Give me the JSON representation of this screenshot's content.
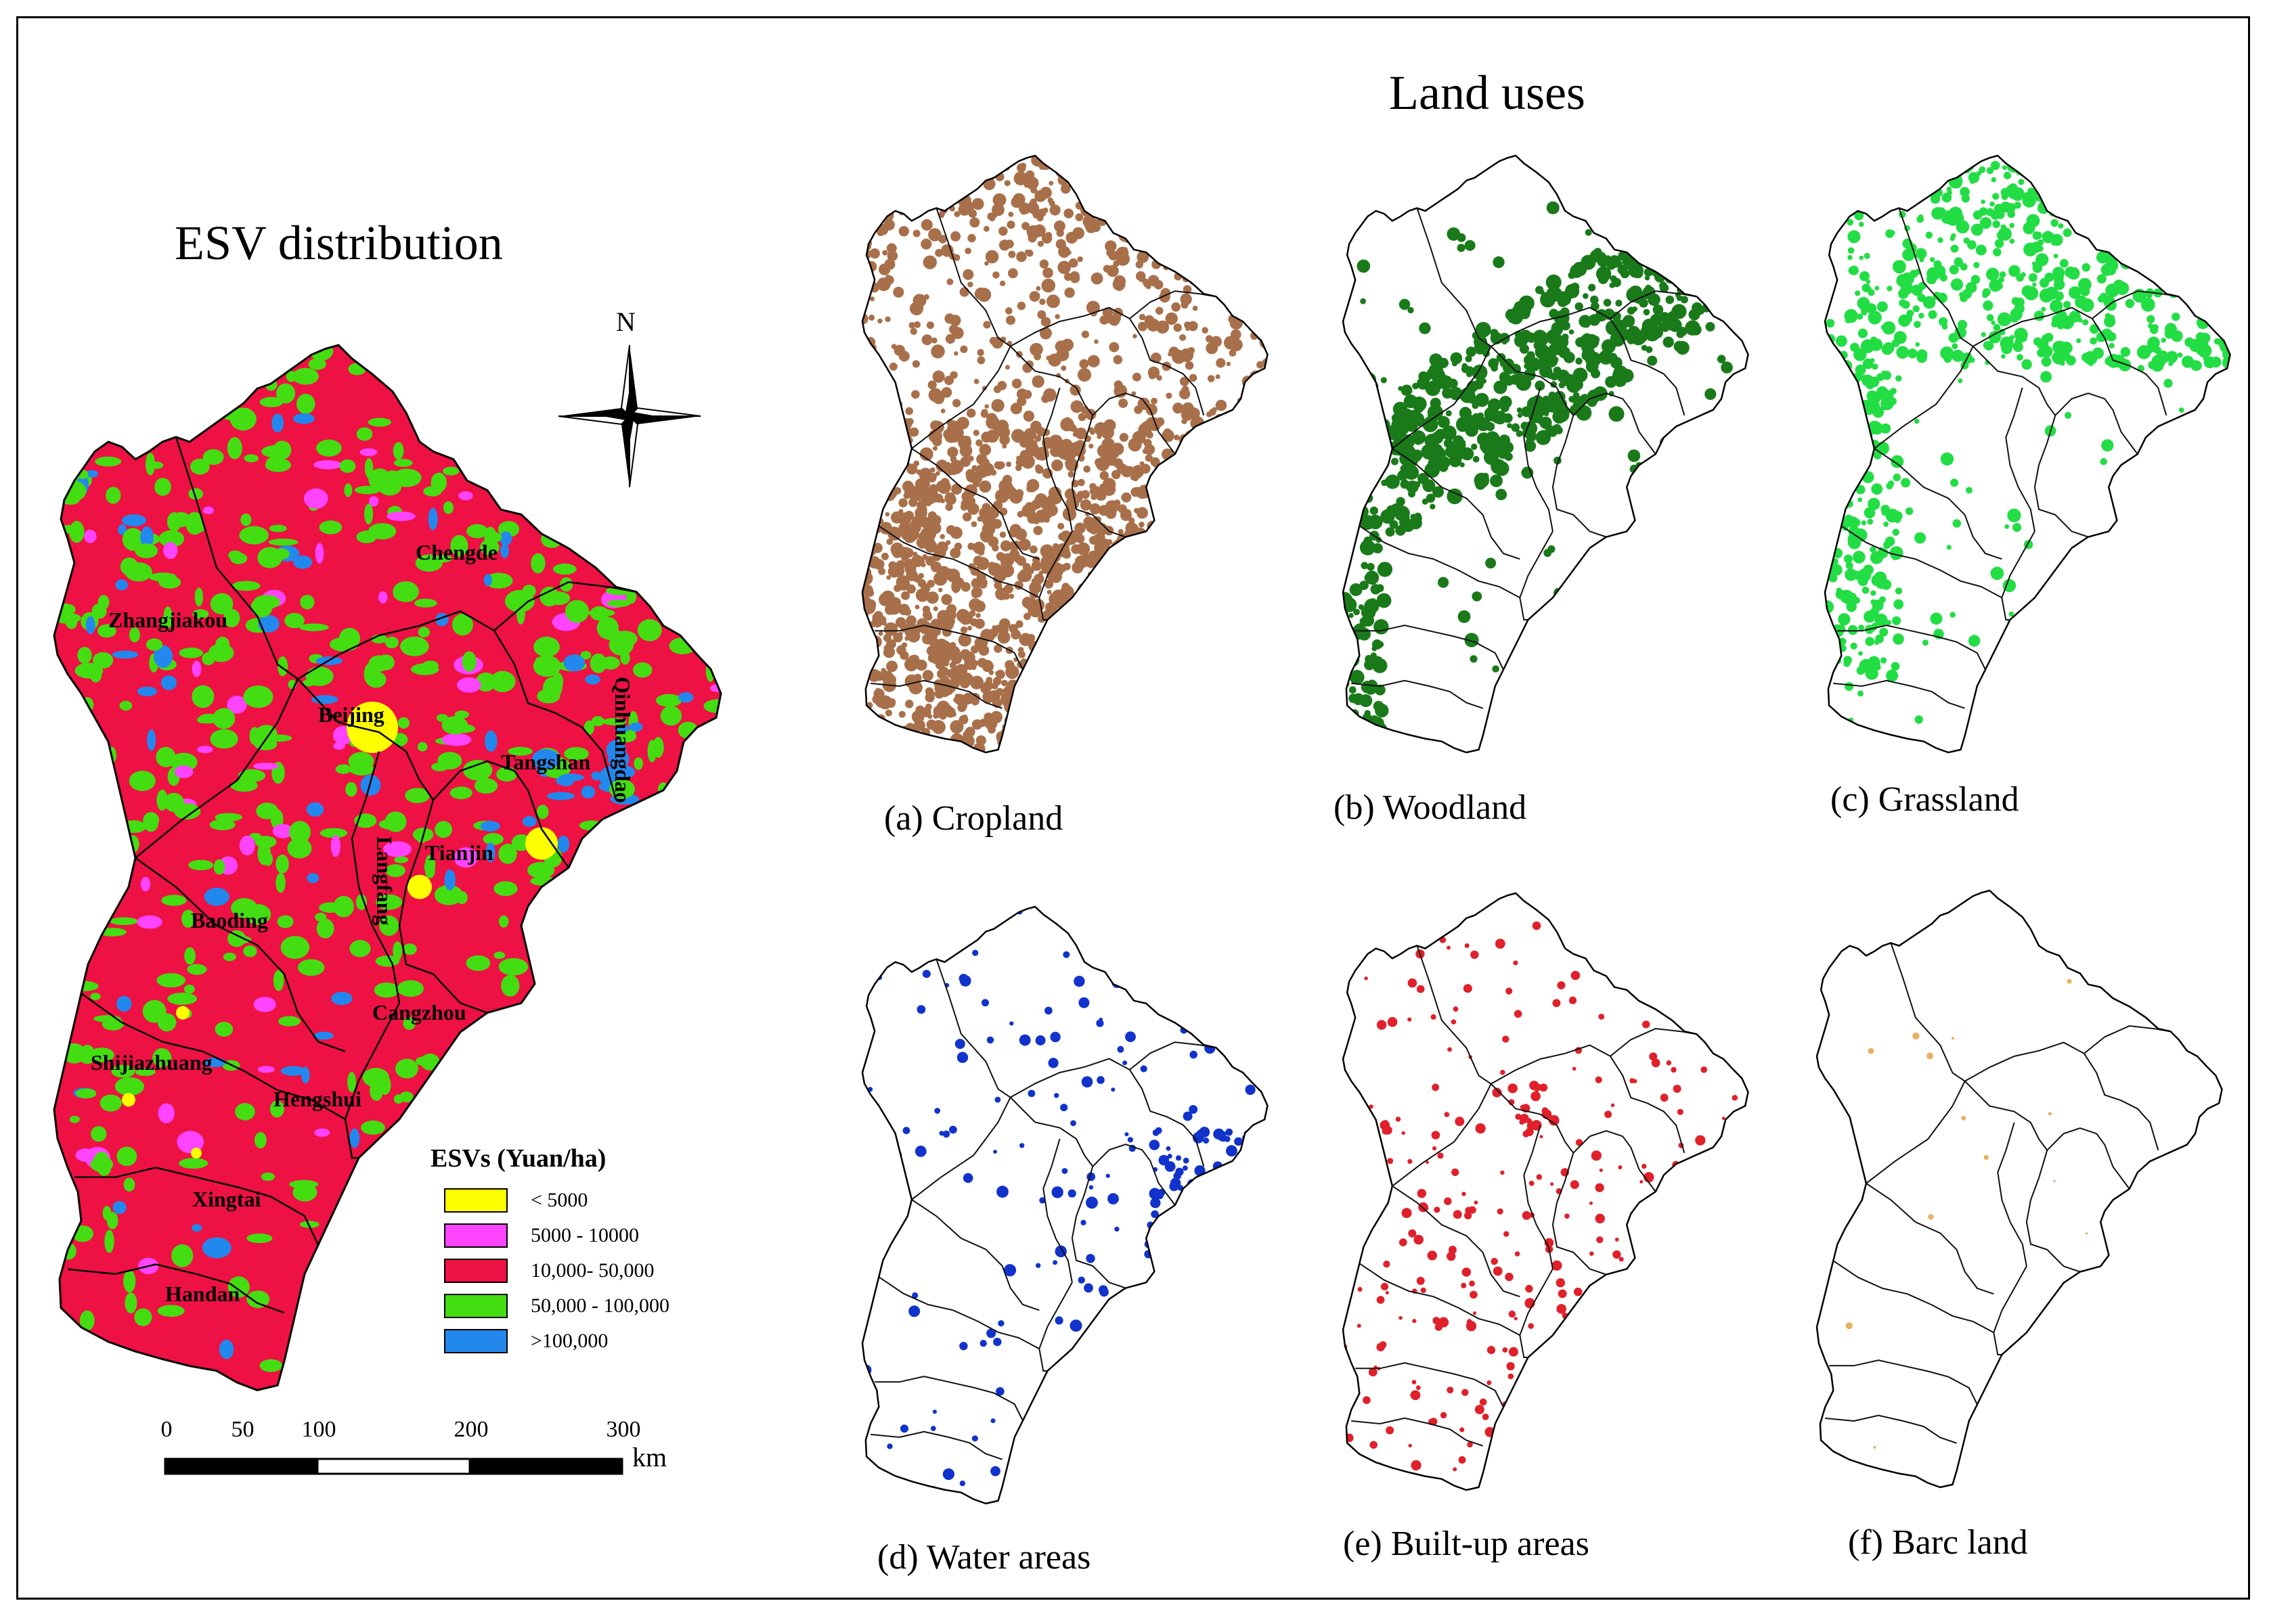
{
  "esv_panel": {
    "title": "ESV distribution",
    "cities": [
      {
        "name": "Zhangjiakou"
      },
      {
        "name": "Chengde"
      },
      {
        "name": "Beijing"
      },
      {
        "name": "Qinhuangdao"
      },
      {
        "name": "Tangshan"
      },
      {
        "name": "Tianjin"
      },
      {
        "name": "Langfang"
      },
      {
        "name": "Baoding"
      },
      {
        "name": "Cangzhou"
      },
      {
        "name": "Shijiazhuang"
      },
      {
        "name": "Hengshui"
      },
      {
        "name": "Xingtai"
      },
      {
        "name": "Handan"
      }
    ],
    "legend": {
      "title": "ESVs (Yuan/ha)",
      "items": [
        {
          "label": "< 5000",
          "color": "#ffff00"
        },
        {
          "label": "5000 - 10000",
          "color": "#ff44ff"
        },
        {
          "label": "10,000- 50,000",
          "color": "#ee1144"
        },
        {
          "label": "50,000 - 100,000",
          "color": "#44dd11"
        },
        {
          "label": ">100,000",
          "color": "#2288ee"
        }
      ]
    },
    "north_label": "N",
    "scale_bar": {
      "ticks": [
        "0",
        "50",
        "100",
        "200",
        "300"
      ],
      "unit": "km"
    }
  },
  "land_uses_panel": {
    "title": "Land uses",
    "maps": [
      {
        "caption": "(a) Cropland",
        "color": "#a8704a"
      },
      {
        "caption": "(b) Woodland",
        "color": "#1a7a1a"
      },
      {
        "caption": "(c) Grassland",
        "color": "#22dd44"
      },
      {
        "caption": "(d) Water areas",
        "color": "#1133cc"
      },
      {
        "caption": "(e) Built-up areas",
        "color": "#e0202a"
      },
      {
        "caption": "(f) Barc land",
        "color": "#e8b060"
      }
    ]
  }
}
